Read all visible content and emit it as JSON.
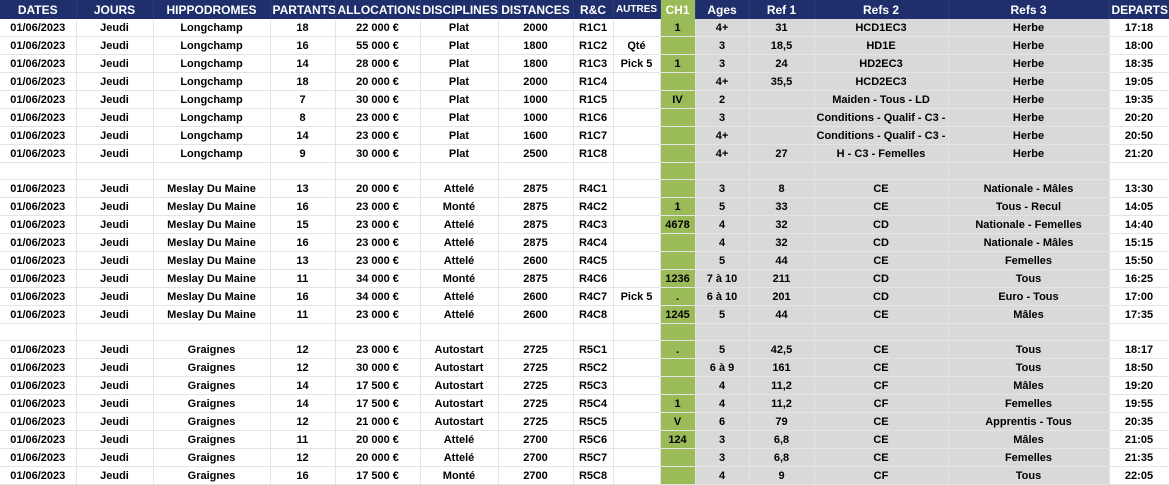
{
  "columns": [
    "DATES",
    "JOURS",
    "HIPPODROMES",
    "PARTANTS",
    "ALLOCATIONS",
    "DISCIPLINES",
    "DISTANCES",
    "R&C",
    "AUTRES",
    "CH1",
    "Ages",
    "Ref 1",
    "Refs 2",
    "Refs 3",
    "DEPARTS"
  ],
  "rows": [
    [
      "01/06/2023",
      "Jeudi",
      "Longchamp",
      "18",
      "22 000 €",
      "Plat",
      "2000",
      "R1C1",
      "",
      "1",
      "4+",
      "31",
      "HCD1EC3",
      "Herbe",
      "17:18"
    ],
    [
      "01/06/2023",
      "Jeudi",
      "Longchamp",
      "16",
      "55 000 €",
      "Plat",
      "1800",
      "R1C2",
      "Qté",
      "",
      "3",
      "18,5",
      "HD1E",
      "Herbe",
      "18:00"
    ],
    [
      "01/06/2023",
      "Jeudi",
      "Longchamp",
      "14",
      "28 000 €",
      "Plat",
      "1800",
      "R1C3",
      "Pick 5",
      "1",
      "3",
      "24",
      "HD2EC3",
      "Herbe",
      "18:35"
    ],
    [
      "01/06/2023",
      "Jeudi",
      "Longchamp",
      "18",
      "20 000 €",
      "Plat",
      "2000",
      "R1C4",
      "",
      "",
      "4+",
      "35,5",
      "HCD2EC3",
      "Herbe",
      "19:05"
    ],
    [
      "01/06/2023",
      "Jeudi",
      "Longchamp",
      "7",
      "30 000 €",
      "Plat",
      "1000",
      "R1C5",
      "",
      "IV",
      "2",
      "",
      "Maiden - Tous - LD",
      "Herbe",
      "19:35"
    ],
    [
      "01/06/2023",
      "Jeudi",
      "Longchamp",
      "8",
      "23 000 €",
      "Plat",
      "1000",
      "R1C6",
      "",
      "",
      "3",
      "",
      "Conditions - Qualif - C3 - Tous - L",
      "Herbe",
      "20:20"
    ],
    [
      "01/06/2023",
      "Jeudi",
      "Longchamp",
      "14",
      "23 000 €",
      "Plat",
      "1600",
      "R1C7",
      "",
      "",
      "4+",
      "",
      "Conditions - Qualif - C3 - Tous",
      "Herbe",
      "20:50"
    ],
    [
      "01/06/2023",
      "Jeudi",
      "Longchamp",
      "9",
      "30 000 €",
      "Plat",
      "2500",
      "R1C8",
      "",
      "",
      "4+",
      "27",
      "H - C3 - Femelles",
      "Herbe",
      "21:20"
    ],
    [
      "",
      "",
      "",
      "",
      "",
      "",
      "",
      "",
      "",
      "",
      "",
      "",
      "",
      "",
      ""
    ],
    [
      "01/06/2023",
      "Jeudi",
      "Meslay Du Maine",
      "13",
      "20 000 €",
      "Attelé",
      "2875",
      "R4C1",
      "",
      "",
      "3",
      "8",
      "CE",
      "Nationale - Mâles",
      "13:30"
    ],
    [
      "01/06/2023",
      "Jeudi",
      "Meslay Du Maine",
      "16",
      "23 000 €",
      "Monté",
      "2875",
      "R4C2",
      "",
      "1",
      "5",
      "33",
      "CE",
      "Tous - Recul",
      "14:05"
    ],
    [
      "01/06/2023",
      "Jeudi",
      "Meslay Du Maine",
      "15",
      "23 000 €",
      "Attelé",
      "2875",
      "R4C3",
      "",
      "4678",
      "4",
      "32",
      "CD",
      "Nationale - Femelles",
      "14:40"
    ],
    [
      "01/06/2023",
      "Jeudi",
      "Meslay Du Maine",
      "16",
      "23 000 €",
      "Attelé",
      "2875",
      "R4C4",
      "",
      "",
      "4",
      "32",
      "CD",
      "Nationale - Mâles",
      "15:15"
    ],
    [
      "01/06/2023",
      "Jeudi",
      "Meslay Du Maine",
      "13",
      "23 000 €",
      "Attelé",
      "2600",
      "R4C5",
      "",
      "",
      "5",
      "44",
      "CE",
      "Femelles",
      "15:50"
    ],
    [
      "01/06/2023",
      "Jeudi",
      "Meslay Du Maine",
      "11",
      "34 000 €",
      "Monté",
      "2875",
      "R4C6",
      "",
      "1236",
      "7 à 10",
      "211",
      "CD",
      "Tous",
      "16:25"
    ],
    [
      "01/06/2023",
      "Jeudi",
      "Meslay Du Maine",
      "16",
      "34 000 €",
      "Attelé",
      "2600",
      "R4C7",
      "Pick 5",
      ".",
      "6 à 10",
      "201",
      "CD",
      "Euro - Tous",
      "17:00"
    ],
    [
      "01/06/2023",
      "Jeudi",
      "Meslay Du Maine",
      "11",
      "23 000 €",
      "Attelé",
      "2600",
      "R4C8",
      "",
      "1245",
      "5",
      "44",
      "CE",
      "Mâles",
      "17:35"
    ],
    [
      "",
      "",
      "",
      "",
      "",
      "",
      "",
      "",
      "",
      "",
      "",
      "",
      "",
      "",
      ""
    ],
    [
      "01/06/2023",
      "Jeudi",
      "Graignes",
      "12",
      "23 000 €",
      "Autostart",
      "2725",
      "R5C1",
      "",
      ".",
      "5",
      "42,5",
      "CE",
      "Tous",
      "18:17"
    ],
    [
      "01/06/2023",
      "Jeudi",
      "Graignes",
      "12",
      "30 000 €",
      "Autostart",
      "2725",
      "R5C2",
      "",
      "",
      "6 à 9",
      "161",
      "CE",
      "Tous",
      "18:50"
    ],
    [
      "01/06/2023",
      "Jeudi",
      "Graignes",
      "14",
      "17 500 €",
      "Autostart",
      "2725",
      "R5C3",
      "",
      "",
      "4",
      "11,2",
      "CF",
      "Mâles",
      "19:20"
    ],
    [
      "01/06/2023",
      "Jeudi",
      "Graignes",
      "14",
      "17 500 €",
      "Autostart",
      "2725",
      "R5C4",
      "",
      "1",
      "4",
      "11,2",
      "CF",
      "Femelles",
      "19:55"
    ],
    [
      "01/06/2023",
      "Jeudi",
      "Graignes",
      "12",
      "21 000 €",
      "Autostart",
      "2725",
      "R5C5",
      "",
      "V",
      "6",
      "79",
      "CE",
      "Apprentis - Tous",
      "20:35"
    ],
    [
      "01/06/2023",
      "Jeudi",
      "Graignes",
      "11",
      "20 000 €",
      "Attelé",
      "2700",
      "R5C6",
      "",
      "124",
      "3",
      "6,8",
      "CE",
      "Mâles",
      "21:05"
    ],
    [
      "01/06/2023",
      "Jeudi",
      "Graignes",
      "12",
      "20 000 €",
      "Attelé",
      "2700",
      "R5C7",
      "",
      "",
      "3",
      "6,8",
      "CE",
      "Femelles",
      "21:35"
    ],
    [
      "01/06/2023",
      "Jeudi",
      "Graignes",
      "16",
      "17 500 €",
      "Monté",
      "2700",
      "R5C8",
      "",
      "",
      "4",
      "9",
      "CF",
      "Tous",
      "22:05"
    ]
  ],
  "colors": {
    "header_bg": "#1f2f6b",
    "ch1_bg": "#9bbb59",
    "gray_bg": "#d9d9d9"
  }
}
